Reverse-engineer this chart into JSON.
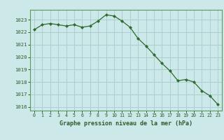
{
  "x": [
    0,
    1,
    2,
    3,
    4,
    5,
    6,
    7,
    8,
    9,
    10,
    11,
    12,
    13,
    14,
    15,
    16,
    17,
    18,
    19,
    20,
    21,
    22,
    23
  ],
  "y": [
    1022.2,
    1022.6,
    1022.7,
    1022.6,
    1022.5,
    1022.6,
    1022.4,
    1022.5,
    1022.9,
    1023.4,
    1023.3,
    1022.9,
    1022.4,
    1021.5,
    1020.9,
    1020.2,
    1019.5,
    1018.9,
    1018.1,
    1018.2,
    1018.0,
    1017.3,
    1016.9,
    1016.2
  ],
  "xlim": [
    -0.5,
    23.5
  ],
  "ylim": [
    1015.7,
    1023.8
  ],
  "yticks": [
    1016,
    1017,
    1018,
    1019,
    1020,
    1021,
    1022,
    1023
  ],
  "xticks": [
    0,
    1,
    2,
    3,
    4,
    5,
    6,
    7,
    8,
    9,
    10,
    11,
    12,
    13,
    14,
    15,
    16,
    17,
    18,
    19,
    20,
    21,
    22,
    23
  ],
  "xlabel": "Graphe pression niveau de la mer (hPa)",
  "line_color": "#2d6a2d",
  "marker": "D",
  "markersize": 2.2,
  "bg_color": "#cce8e8",
  "grid_color": "#aacece",
  "tick_color": "#2d5a2d",
  "spine_color": "#5a9a5a",
  "figsize": [
    3.2,
    2.0
  ],
  "dpi": 100
}
